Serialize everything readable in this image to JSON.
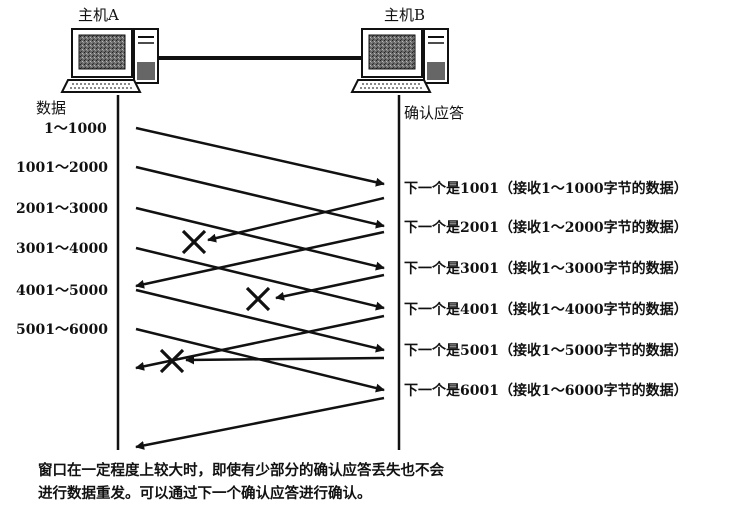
{
  "hosts": {
    "a_label": "主机A",
    "b_label": "主机B"
  },
  "sender": {
    "header": "数据",
    "segments": [
      "1～1000",
      "1001～2000",
      "2001～3000",
      "3001～4000",
      "4001～5000",
      "5001～6000"
    ]
  },
  "receiver": {
    "header": "确认应答",
    "acks": [
      "下一个是1001（接收1～1000字节的数据）",
      "下一个是2001（接收1～2000字节的数据）",
      "下一个是3001（接收1～3000字节的数据）",
      "下一个是4001（接收1～4000字节的数据）",
      "下一个是5001（接收1～5000字节的数据）",
      "下一个是6001（接收1～6000字节的数据）"
    ]
  },
  "lost_acks": {
    "marker": "×",
    "lost_indices": [
      0,
      2,
      4
    ]
  },
  "caption": {
    "line1": "窗口在一定程度上较大时，即使有少部分的确认应答丢失也不会",
    "line2": "进行数据重发。可以通过下一个确认应答进行确认。"
  },
  "colors": {
    "ink": "#111111",
    "screen": "#555555"
  }
}
